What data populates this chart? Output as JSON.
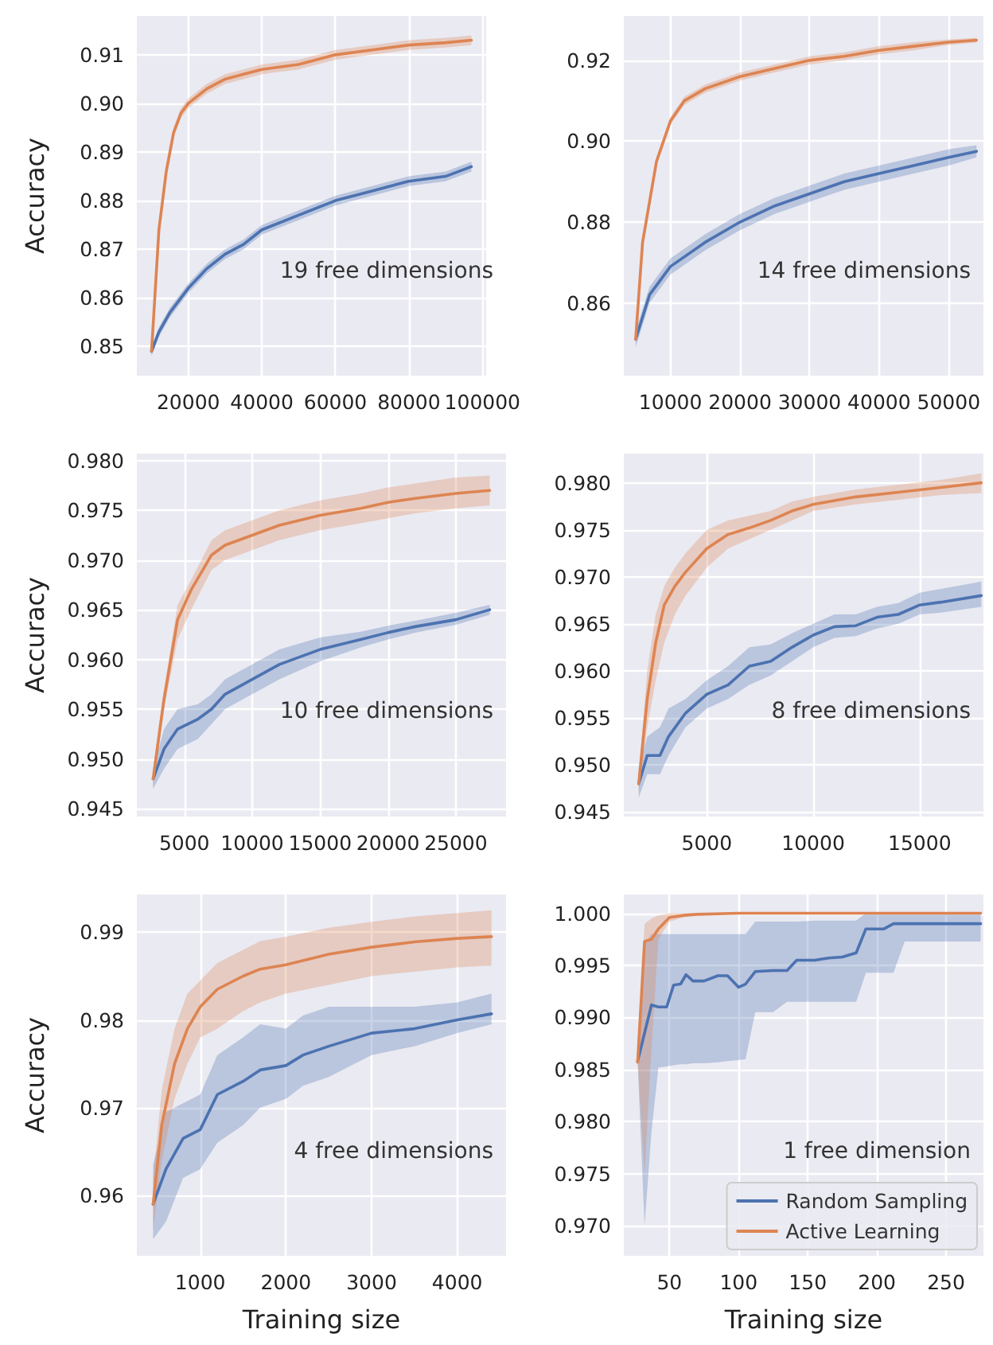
{
  "chart_data": [
    {
      "type": "line",
      "ylabel": "Accuracy",
      "annotations": [
        "19 free dimensions"
      ],
      "xlim": [
        6000,
        101000
      ],
      "ylim": [
        0.844,
        0.918
      ],
      "xticks": [
        20000,
        40000,
        60000,
        80000,
        100000
      ],
      "yticks": [
        0.85,
        0.86,
        0.87,
        0.88,
        0.89,
        {
          "value": 0.9,
          "label": "0.90"
        },
        0.91
      ],
      "grid": true,
      "legend": false,
      "marker": "none",
      "line_style": "solid",
      "series": [
        {
          "color": "#4c72b0",
          "x": [
            10000,
            12000,
            15000,
            20000,
            25000,
            30000,
            35000,
            40000,
            50000,
            60000,
            70000,
            80000,
            90000,
            97000
          ],
          "values": [
            0.849,
            0.853,
            0.857,
            0.862,
            0.866,
            0.869,
            0.871,
            0.874,
            0.877,
            0.88,
            0.882,
            0.884,
            0.885,
            0.887
          ],
          "lower": [
            0.848,
            0.852,
            0.856,
            0.861,
            0.865,
            0.868,
            0.87,
            0.873,
            0.876,
            0.879,
            0.881,
            0.883,
            0.884,
            0.886
          ],
          "upper": [
            0.85,
            0.854,
            0.858,
            0.863,
            0.867,
            0.87,
            0.872,
            0.875,
            0.878,
            0.881,
            0.883,
            0.885,
            0.886,
            0.888
          ]
        },
        {
          "color": "#dd8452",
          "x": [
            10000,
            12000,
            14000,
            16000,
            18000,
            20000,
            25000,
            30000,
            35000,
            40000,
            50000,
            60000,
            70000,
            80000,
            90000,
            97000
          ],
          "values": [
            0.849,
            0.874,
            0.886,
            0.894,
            0.898,
            0.9,
            0.903,
            0.905,
            0.906,
            0.907,
            0.908,
            0.91,
            0.911,
            0.912,
            0.9125,
            0.913
          ],
          "lower": [
            0.848,
            0.873,
            0.885,
            0.893,
            0.897,
            0.899,
            0.902,
            0.904,
            0.905,
            0.906,
            0.907,
            0.909,
            0.91,
            0.911,
            0.9115,
            0.912
          ],
          "upper": [
            0.85,
            0.875,
            0.887,
            0.895,
            0.899,
            0.901,
            0.904,
            0.906,
            0.907,
            0.908,
            0.909,
            0.911,
            0.912,
            0.913,
            0.9135,
            0.914
          ]
        }
      ]
    },
    {
      "type": "line",
      "annotations": [
        "14 free dimensions"
      ],
      "xlim": [
        3300,
        55000
      ],
      "ylim": [
        0.842,
        0.931
      ],
      "xticks": [
        10000,
        20000,
        30000,
        40000,
        50000
      ],
      "yticks": [
        0.86,
        0.88,
        {
          "value": 0.9,
          "label": "0.90"
        },
        0.92
      ],
      "grid": true,
      "legend": false,
      "marker": "none",
      "line_style": "solid",
      "series": [
        {
          "color": "#4c72b0",
          "x": [
            5000,
            7000,
            10000,
            15000,
            20000,
            25000,
            30000,
            35000,
            40000,
            45000,
            50000,
            54000
          ],
          "values": [
            0.851,
            0.862,
            0.869,
            0.875,
            0.88,
            0.884,
            0.887,
            0.89,
            0.892,
            0.894,
            0.896,
            0.8975
          ],
          "lower": [
            0.849,
            0.86,
            0.867,
            0.873,
            0.878,
            0.882,
            0.885,
            0.888,
            0.89,
            0.892,
            0.894,
            0.896
          ],
          "upper": [
            0.853,
            0.864,
            0.871,
            0.877,
            0.882,
            0.886,
            0.889,
            0.892,
            0.894,
            0.896,
            0.898,
            0.899
          ]
        },
        {
          "color": "#dd8452",
          "x": [
            5000,
            6000,
            8000,
            10000,
            12000,
            15000,
            20000,
            25000,
            30000,
            35000,
            40000,
            45000,
            50000,
            54000
          ],
          "values": [
            0.851,
            0.875,
            0.895,
            0.905,
            0.91,
            0.913,
            0.916,
            0.918,
            0.92,
            0.921,
            0.9225,
            0.9235,
            0.9245,
            0.925
          ],
          "lower": [
            0.85,
            0.874,
            0.894,
            0.904,
            0.909,
            0.912,
            0.915,
            0.917,
            0.919,
            0.92,
            0.9215,
            0.9225,
            0.9238,
            0.9244
          ],
          "upper": [
            0.852,
            0.876,
            0.896,
            0.906,
            0.911,
            0.914,
            0.917,
            0.919,
            0.921,
            0.922,
            0.9235,
            0.9245,
            0.9252,
            0.9256
          ]
        }
      ]
    },
    {
      "type": "line",
      "ylabel": "Accuracy",
      "annotations": [
        "10 free dimensions"
      ],
      "xlim": [
        1500,
        28700
      ],
      "ylim": [
        0.9442,
        0.9807
      ],
      "xticks": [
        5000,
        10000,
        15000,
        20000,
        25000
      ],
      "yticks": [
        0.945,
        {
          "value": 0.95,
          "label": "0.950"
        },
        0.955,
        {
          "value": 0.96,
          "label": "0.960"
        },
        0.965,
        {
          "value": 0.97,
          "label": "0.970"
        },
        0.975,
        {
          "value": 0.98,
          "label": "0.980"
        }
      ],
      "grid": true,
      "legend": false,
      "marker": "none",
      "line_style": "solid",
      "series": [
        {
          "color": "#4c72b0",
          "x": [
            2700,
            3500,
            4500,
            6000,
            7000,
            8000,
            10000,
            12000,
            15000,
            18000,
            20000,
            22000,
            25000,
            27500
          ],
          "values": [
            0.948,
            0.951,
            0.953,
            0.954,
            0.955,
            0.9565,
            0.958,
            0.9595,
            0.961,
            0.962,
            0.9627,
            0.9633,
            0.964,
            0.965
          ],
          "lower": [
            0.947,
            0.949,
            0.951,
            0.952,
            0.9535,
            0.955,
            0.9565,
            0.958,
            0.9598,
            0.9612,
            0.962,
            0.9627,
            0.9635,
            0.9645
          ],
          "upper": [
            0.949,
            0.953,
            0.955,
            0.9555,
            0.9565,
            0.958,
            0.9595,
            0.961,
            0.9622,
            0.9628,
            0.9634,
            0.9639,
            0.9647,
            0.9655
          ]
        },
        {
          "color": "#dd8452",
          "x": [
            2700,
            3500,
            4500,
            5500,
            7000,
            8000,
            10000,
            12000,
            15000,
            18000,
            20000,
            22000,
            25000,
            27500
          ],
          "values": [
            0.948,
            0.956,
            0.964,
            0.967,
            0.9705,
            0.9715,
            0.9725,
            0.9735,
            0.9745,
            0.9752,
            0.9758,
            0.9762,
            0.9767,
            0.977
          ],
          "lower": [
            0.947,
            0.955,
            0.962,
            0.965,
            0.969,
            0.97,
            0.971,
            0.972,
            0.973,
            0.9737,
            0.9742,
            0.9747,
            0.9752,
            0.9755
          ],
          "upper": [
            0.949,
            0.957,
            0.9655,
            0.968,
            0.972,
            0.973,
            0.974,
            0.975,
            0.976,
            0.9767,
            0.9773,
            0.9777,
            0.9783,
            0.9785
          ]
        }
      ]
    },
    {
      "type": "line",
      "annotations": [
        "8 free dimensions"
      ],
      "xlim": [
        1100,
        18000
      ],
      "ylim": [
        0.9445,
        0.9831
      ],
      "xticks": [
        5000,
        10000,
        15000
      ],
      "yticks": [
        0.945,
        {
          "value": 0.95,
          "label": "0.950"
        },
        0.955,
        {
          "value": 0.96,
          "label": "0.960"
        },
        0.965,
        {
          "value": 0.97,
          "label": "0.970"
        },
        0.975,
        {
          "value": 0.98,
          "label": "0.980"
        }
      ],
      "grid": true,
      "legend": false,
      "marker": "none",
      "line_style": "solid",
      "series": [
        {
          "color": "#4c72b0",
          "x": [
            1800,
            2200,
            2800,
            3200,
            4000,
            5000,
            6000,
            7000,
            8000,
            9000,
            10000,
            11000,
            12000,
            13000,
            14000,
            15000,
            16000,
            17900
          ],
          "values": [
            0.948,
            0.951,
            0.951,
            0.953,
            0.9555,
            0.9575,
            0.9585,
            0.9605,
            0.961,
            0.9625,
            0.9638,
            0.9647,
            0.9648,
            0.9657,
            0.966,
            0.967,
            0.9673,
            0.968
          ],
          "lower": [
            0.9465,
            0.949,
            0.949,
            0.951,
            0.954,
            0.956,
            0.957,
            0.9585,
            0.9595,
            0.961,
            0.9625,
            0.9635,
            0.9637,
            0.9645,
            0.965,
            0.966,
            0.9662,
            0.9668
          ],
          "upper": [
            0.9495,
            0.953,
            0.954,
            0.956,
            0.957,
            0.959,
            0.9605,
            0.9625,
            0.9628,
            0.964,
            0.965,
            0.966,
            0.966,
            0.9668,
            0.9672,
            0.9683,
            0.9687,
            0.9695
          ]
        },
        {
          "color": "#dd8452",
          "x": [
            1800,
            2200,
            2600,
            3000,
            3500,
            4000,
            5000,
            6000,
            7000,
            8000,
            9000,
            10000,
            12000,
            14000,
            16000,
            17900
          ],
          "values": [
            0.948,
            0.957,
            0.963,
            0.967,
            0.969,
            0.9705,
            0.973,
            0.9745,
            0.9752,
            0.976,
            0.977,
            0.9777,
            0.9785,
            0.979,
            0.9795,
            0.98
          ],
          "lower": [
            0.947,
            0.954,
            0.959,
            0.963,
            0.966,
            0.968,
            0.971,
            0.973,
            0.974,
            0.975,
            0.976,
            0.977,
            0.9777,
            0.9782,
            0.9787,
            0.9789
          ],
          "upper": [
            0.949,
            0.96,
            0.966,
            0.969,
            0.971,
            0.9725,
            0.975,
            0.976,
            0.9765,
            0.977,
            0.978,
            0.9785,
            0.9793,
            0.9798,
            0.9803,
            0.981
          ]
        }
      ]
    },
    {
      "type": "line",
      "xlabel": "Training size",
      "ylabel": "Accuracy",
      "annotations": [
        "4 free dimensions"
      ],
      "xlim": [
        260,
        4570
      ],
      "ylim": [
        0.9531,
        0.9943
      ],
      "xticks": [
        1000,
        2000,
        3000,
        4000
      ],
      "yticks": [
        0.96,
        0.97,
        0.98,
        0.99
      ],
      "grid": true,
      "legend": false,
      "marker": "none",
      "line_style": "solid",
      "series": [
        {
          "color": "#4c72b0",
          "x": [
            450,
            600,
            800,
            1000,
            1200,
            1500,
            1700,
            2000,
            2200,
            2500,
            3000,
            3500,
            4000,
            4400
          ],
          "values": [
            0.959,
            0.963,
            0.9665,
            0.9675,
            0.9715,
            0.973,
            0.9743,
            0.9748,
            0.976,
            0.977,
            0.9785,
            0.979,
            0.98,
            0.9807
          ],
          "lower": [
            0.955,
            0.957,
            0.962,
            0.963,
            0.966,
            0.968,
            0.97,
            0.971,
            0.9725,
            0.9735,
            0.976,
            0.977,
            0.9785,
            0.9795
          ],
          "upper": [
            0.9635,
            0.9695,
            0.9705,
            0.9715,
            0.976,
            0.978,
            0.9795,
            0.979,
            0.9805,
            0.9815,
            0.9815,
            0.9815,
            0.982,
            0.983
          ]
        },
        {
          "color": "#dd8452",
          "x": [
            450,
            550,
            700,
            850,
            1000,
            1200,
            1500,
            1700,
            2000,
            2500,
            3000,
            3500,
            4000,
            4400
          ],
          "values": [
            0.959,
            0.968,
            0.975,
            0.979,
            0.9815,
            0.9835,
            0.985,
            0.9858,
            0.9863,
            0.9875,
            0.9883,
            0.9889,
            0.9893,
            0.9895
          ],
          "lower": [
            0.956,
            0.964,
            0.971,
            0.975,
            0.978,
            0.979,
            0.981,
            0.982,
            0.983,
            0.984,
            0.985,
            0.9855,
            0.986,
            0.9862
          ],
          "upper": [
            0.962,
            0.972,
            0.979,
            0.983,
            0.9845,
            0.9865,
            0.988,
            0.989,
            0.9895,
            0.9905,
            0.9912,
            0.9918,
            0.9922,
            0.9925
          ]
        }
      ]
    },
    {
      "type": "line",
      "xlabel": "Training size",
      "annotations": [
        "1 free dimension"
      ],
      "xlim": [
        17,
        277
      ],
      "ylim": [
        0.9671,
        1.0018
      ],
      "xticks": [
        50,
        100,
        150,
        200,
        250
      ],
      "yticks": [
        {
          "value": 0.97,
          "label": "0.970"
        },
        0.975,
        {
          "value": 0.98,
          "label": "0.980"
        },
        0.985,
        {
          "value": 0.99,
          "label": "0.990"
        },
        0.995,
        {
          "value": 1,
          "label": "1.000"
        }
      ],
      "grid": true,
      "legend": "bottom right",
      "marker": "none",
      "line_style": "solid",
      "series": [
        {
          "name": "Random Sampling",
          "color": "#4c72b0",
          "x": [
            27,
            32,
            37,
            42,
            48,
            53,
            58,
            62,
            67,
            75,
            85,
            92,
            100,
            105,
            112,
            125,
            135,
            142,
            155,
            165,
            175,
            185,
            192,
            205,
            212,
            220,
            230,
            275
          ],
          "values": [
            0.9858,
            0.9885,
            0.9912,
            0.991,
            0.991,
            0.9931,
            0.9932,
            0.9941,
            0.9935,
            0.9935,
            0.994,
            0.994,
            0.9929,
            0.9932,
            0.9944,
            0.9945,
            0.9945,
            0.9955,
            0.9955,
            0.9957,
            0.9958,
            0.9962,
            0.9985,
            0.9985,
            0.999,
            0.999,
            0.999,
            0.999
          ],
          "lower": [
            0.9858,
            0.97,
            0.979,
            0.9852,
            0.9853,
            0.9854,
            0.9855,
            0.9855,
            0.9856,
            0.9856,
            0.9857,
            0.9858,
            0.9859,
            0.986,
            0.9905,
            0.9905,
            0.9915,
            0.9915,
            0.9915,
            0.9915,
            0.9915,
            0.9915,
            0.9943,
            0.9943,
            0.9943,
            0.9973,
            0.9973,
            0.9973
          ],
          "upper": [
            0.9858,
            0.997,
            0.998,
            0.998,
            0.998,
            0.998,
            0.998,
            0.998,
            0.998,
            0.998,
            0.998,
            0.998,
            0.998,
            0.998,
            0.9992,
            0.9992,
            0.9992,
            0.9992,
            0.9993,
            0.9993,
            0.9993,
            0.9993,
            1,
            1,
            1,
            1,
            1,
            1
          ]
        },
        {
          "name": "Active Learning",
          "color": "#dd8452",
          "x": [
            27,
            32,
            37,
            42,
            50,
            60,
            70,
            100,
            150,
            200,
            275
          ],
          "values": [
            0.9857,
            0.9973,
            0.9975,
            0.9985,
            0.9996,
            0.9998,
            0.9999,
            1,
            1,
            1,
            1
          ],
          "lower": [
            0.9857,
            0.975,
            0.987,
            0.9975,
            0.9992,
            0.9996,
            0.9998,
            1,
            1,
            1,
            1
          ],
          "upper": [
            0.9857,
            0.999,
            0.9995,
            0.9998,
            1,
            1,
            1,
            1,
            1,
            1,
            1
          ]
        }
      ]
    }
  ]
}
